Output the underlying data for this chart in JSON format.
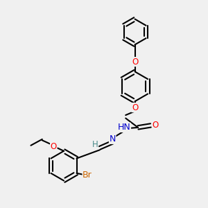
{
  "background_color": "#f0f0f0",
  "bond_color": "#000000",
  "atom_colors": {
    "O": "#ff0000",
    "N": "#0000cd",
    "Br": "#cc6600",
    "H": "#4a8a8a",
    "C": "#000000"
  },
  "bond_width": 1.5,
  "font_size": 8.5,
  "fig_size": [
    3.0,
    3.0
  ],
  "dpi": 100
}
